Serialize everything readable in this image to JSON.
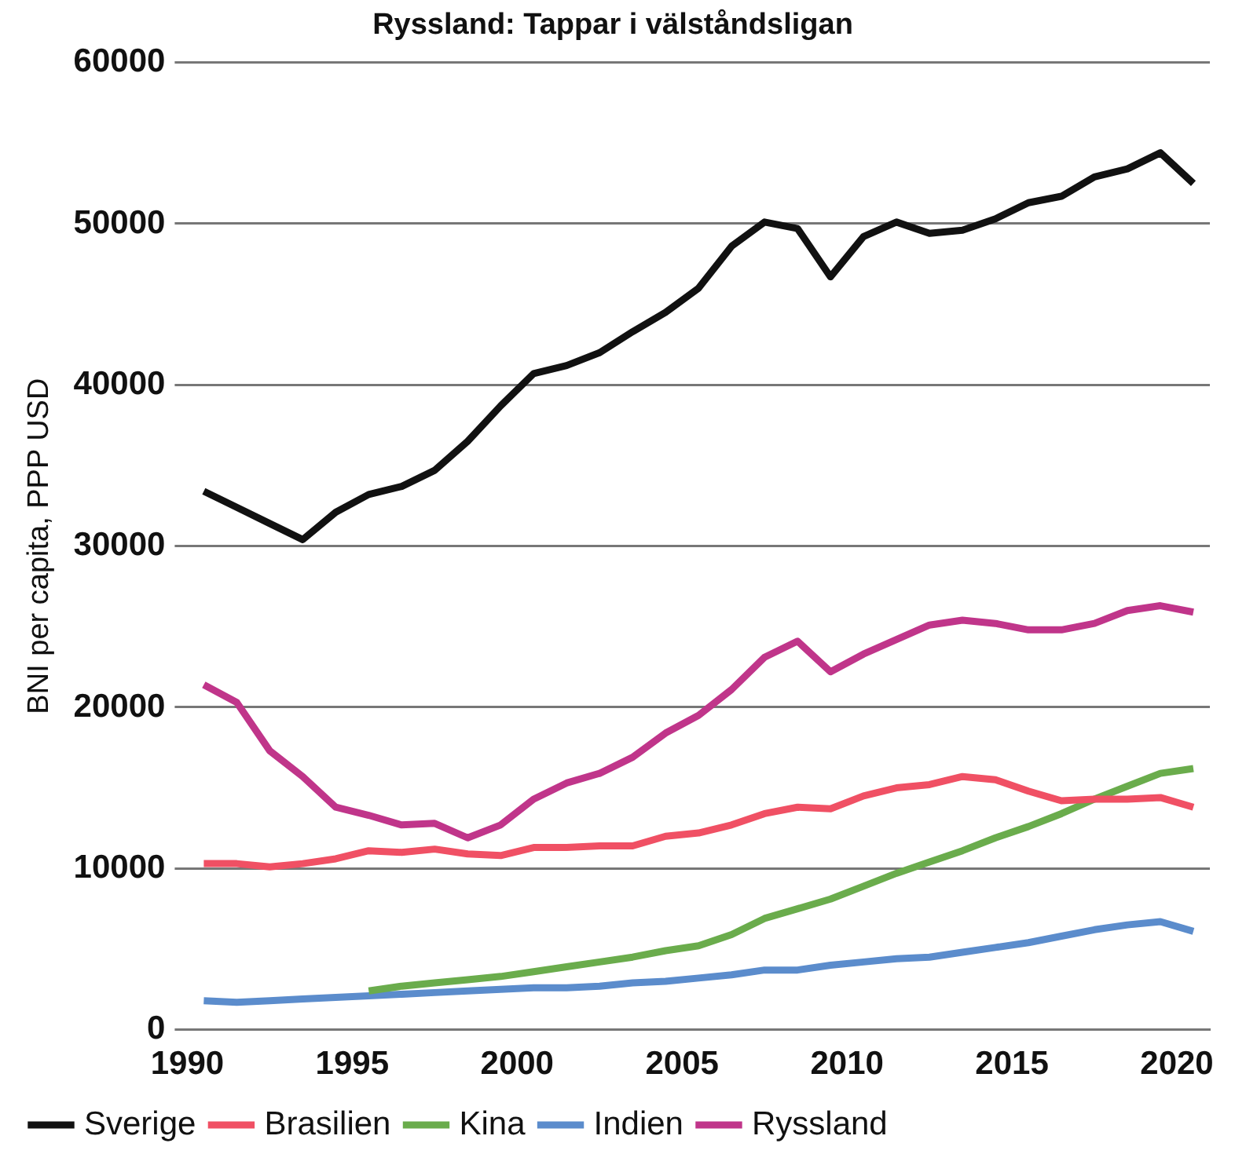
{
  "chart_data": {
    "type": "line",
    "title": "Ryssland: Tappar i välståndsligan",
    "ylabel": "BNI per capita, PPP USD",
    "x": [
      1990.5,
      1991.5,
      1992.5,
      1993.5,
      1994.5,
      1995.5,
      1996.5,
      1997.5,
      1998.5,
      1999.5,
      2000.5,
      2001.5,
      2002.5,
      2003.5,
      2004.5,
      2005.5,
      2006.5,
      2007.5,
      2008.5,
      2009.5,
      2010.5,
      2011.5,
      2012.5,
      2013.5,
      2014.5,
      2015.5,
      2016.5,
      2017.5,
      2018.5,
      2019.5,
      2020.5
    ],
    "series": [
      {
        "name": "Sverige",
        "color": "#111111",
        "values": [
          33400,
          32400,
          31400,
          30400,
          32100,
          33200,
          33700,
          34700,
          36500,
          38700,
          40700,
          41200,
          42000,
          43300,
          44500,
          46000,
          48600,
          50100,
          49700,
          46700,
          49200,
          50100,
          49400,
          49600,
          50300,
          51300,
          51700,
          52900,
          53400,
          54400,
          52500
        ]
      },
      {
        "name": "Brasilien",
        "color": "#f05064",
        "values": [
          10300,
          10300,
          10100,
          10300,
          10600,
          11100,
          11000,
          11200,
          10900,
          10800,
          11300,
          11300,
          11400,
          11400,
          12000,
          12200,
          12700,
          13400,
          13800,
          13700,
          14500,
          15000,
          15200,
          15700,
          15500,
          14800,
          14200,
          14300,
          14300,
          14400,
          13800
        ]
      },
      {
        "name": "Kina",
        "color": "#6aac4c",
        "values": [
          null,
          null,
          null,
          null,
          null,
          2400,
          2700,
          2900,
          3100,
          3300,
          3600,
          3900,
          4200,
          4500,
          4900,
          5200,
          5900,
          6900,
          7500,
          8100,
          8900,
          9700,
          10400,
          11100,
          11900,
          12600,
          13400,
          14300,
          15100,
          15900,
          16200
        ]
      },
      {
        "name": "Indien",
        "color": "#5b8ccc",
        "values": [
          1800,
          1700,
          1800,
          1900,
          2000,
          2100,
          2200,
          2300,
          2400,
          2500,
          2600,
          2600,
          2700,
          2900,
          3000,
          3200,
          3400,
          3700,
          3700,
          4000,
          4200,
          4400,
          4500,
          4800,
          5100,
          5400,
          5800,
          6200,
          6500,
          6700,
          6100
        ]
      },
      {
        "name": "Ryssland",
        "color": "#c0358a",
        "values": [
          21400,
          20300,
          17300,
          15700,
          13800,
          13300,
          12700,
          12800,
          11900,
          12700,
          14300,
          15300,
          15900,
          16900,
          18400,
          19500,
          21100,
          23100,
          24100,
          22200,
          23300,
          24200,
          25100,
          25400,
          25200,
          24800,
          24800,
          25200,
          26000,
          26300,
          25900
        ]
      }
    ],
    "xlim": [
      1990,
      2021
    ],
    "xticks": [
      1990,
      1995,
      2000,
      2005,
      2010,
      2015,
      2020
    ],
    "ylim": [
      0,
      60000
    ],
    "yticks": [
      0,
      10000,
      20000,
      30000,
      40000,
      50000,
      60000
    ],
    "grid": "y",
    "legend": "bottom",
    "marker": "none",
    "line_style": "solid"
  }
}
